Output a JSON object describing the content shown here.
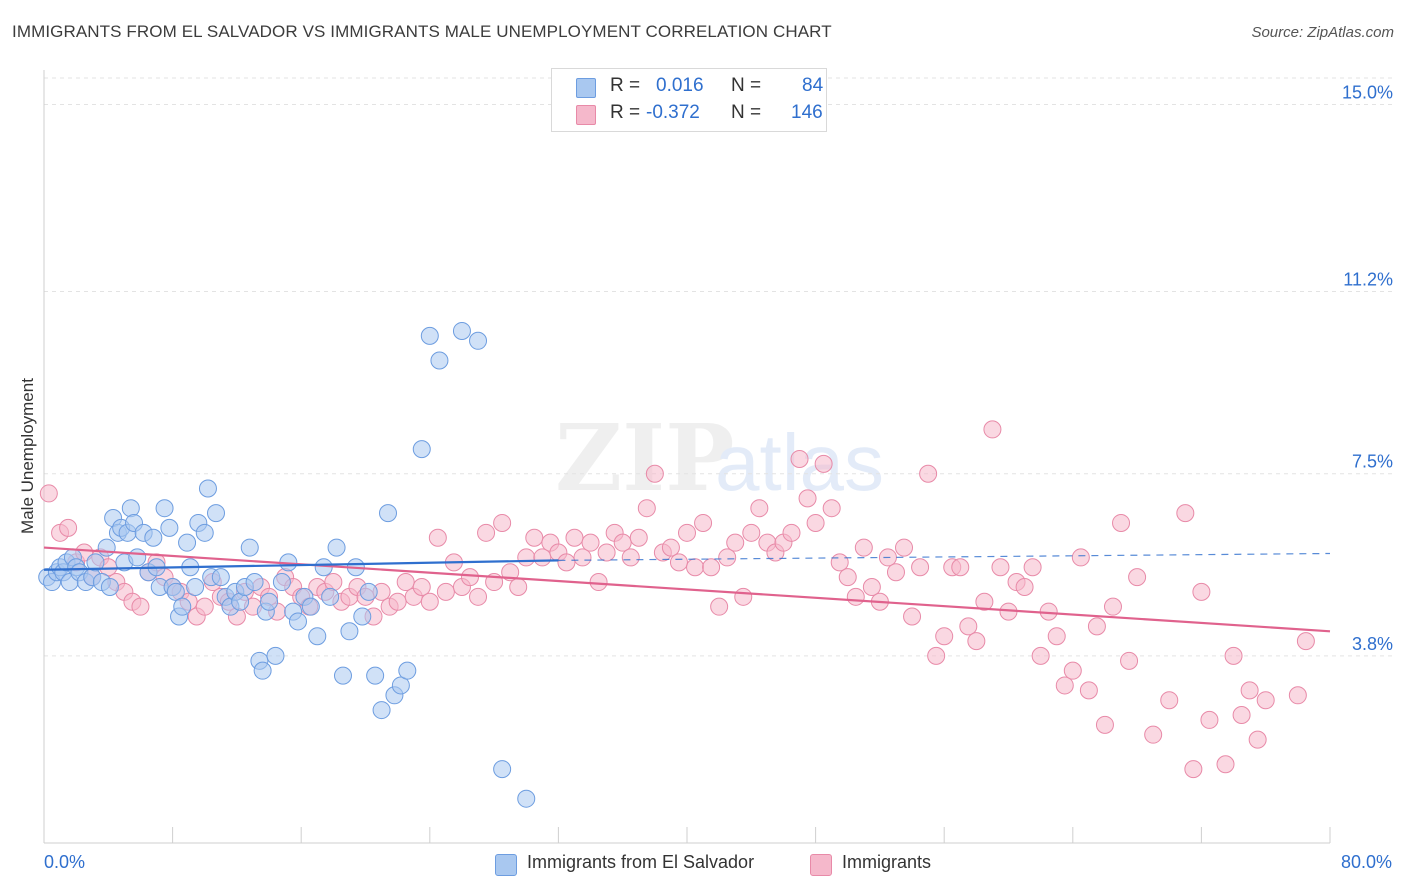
{
  "title": "IMMIGRANTS FROM EL SALVADOR VS IMMIGRANTS MALE UNEMPLOYMENT CORRELATION CHART",
  "source": "Source: ZipAtlas.com",
  "colors": {
    "blue_fill": "#a9c8f0",
    "blue_stroke": "#6d9de0",
    "blue_line": "#2f6fce",
    "pink_fill": "#f5b8cb",
    "pink_stroke": "#e88aa8",
    "pink_line": "#e0628d",
    "value_text": "#2f6fce",
    "grid": "#e3e3e3"
  },
  "legend_top": {
    "rows": [
      {
        "r_label": "R =",
        "r_value": "0.016",
        "n_label": "N =",
        "n_value": "84"
      },
      {
        "r_label": "R =",
        "r_value": "-0.372",
        "n_label": "N =",
        "n_value": "146"
      }
    ]
  },
  "chart_data": {
    "type": "scatter",
    "xlabel": "",
    "ylabel": "Male Unemployment",
    "xlim": [
      0,
      80
    ],
    "ylim": [
      0,
      15.7
    ],
    "x_tick_labels": [
      "0.0%",
      "80.0%"
    ],
    "y_ticks": [
      3.8,
      7.5,
      11.2,
      15.0
    ],
    "y_tick_labels": [
      "3.8%",
      "7.5%",
      "11.2%",
      "15.0%"
    ],
    "grid": "horizontal dashed",
    "legend_position": "bottom",
    "series": [
      {
        "name": "Immigrants from El Salvador",
        "r": 0.016,
        "n": 84,
        "trend": {
          "x0": 0,
          "y0": 5.55,
          "x1": 32,
          "y1": 5.74,
          "dashed_to": 80,
          "dashed_y1": 5.88
        },
        "points": [
          [
            0.2,
            5.4
          ],
          [
            0.5,
            5.3
          ],
          [
            0.8,
            5.5
          ],
          [
            1.0,
            5.6
          ],
          [
            1.2,
            5.5
          ],
          [
            1.4,
            5.7
          ],
          [
            1.6,
            5.3
          ],
          [
            1.8,
            5.8
          ],
          [
            2.0,
            5.6
          ],
          [
            2.2,
            5.5
          ],
          [
            2.6,
            5.3
          ],
          [
            3.0,
            5.4
          ],
          [
            3.2,
            5.7
          ],
          [
            3.6,
            5.3
          ],
          [
            3.9,
            6.0
          ],
          [
            4.1,
            5.2
          ],
          [
            4.3,
            6.6
          ],
          [
            4.6,
            6.3
          ],
          [
            4.8,
            6.4
          ],
          [
            5.0,
            5.7
          ],
          [
            5.2,
            6.3
          ],
          [
            5.4,
            6.8
          ],
          [
            5.6,
            6.5
          ],
          [
            5.8,
            5.8
          ],
          [
            6.2,
            6.3
          ],
          [
            6.5,
            5.5
          ],
          [
            6.8,
            6.2
          ],
          [
            7.0,
            5.6
          ],
          [
            7.2,
            5.2
          ],
          [
            7.5,
            6.8
          ],
          [
            7.8,
            6.4
          ],
          [
            8.0,
            5.2
          ],
          [
            8.2,
            5.1
          ],
          [
            8.4,
            4.6
          ],
          [
            8.6,
            4.8
          ],
          [
            8.9,
            6.1
          ],
          [
            9.1,
            5.6
          ],
          [
            9.4,
            5.2
          ],
          [
            9.6,
            6.5
          ],
          [
            10.0,
            6.3
          ],
          [
            10.2,
            7.2
          ],
          [
            10.4,
            5.4
          ],
          [
            10.7,
            6.7
          ],
          [
            11.0,
            5.4
          ],
          [
            11.3,
            5.0
          ],
          [
            11.6,
            4.8
          ],
          [
            11.9,
            5.1
          ],
          [
            12.2,
            4.9
          ],
          [
            12.5,
            5.2
          ],
          [
            12.8,
            6.0
          ],
          [
            13.1,
            5.3
          ],
          [
            13.4,
            3.7
          ],
          [
            13.6,
            3.5
          ],
          [
            13.8,
            4.7
          ],
          [
            14.0,
            4.9
          ],
          [
            14.4,
            3.8
          ],
          [
            14.8,
            5.3
          ],
          [
            15.2,
            5.7
          ],
          [
            15.5,
            4.7
          ],
          [
            15.8,
            4.5
          ],
          [
            16.2,
            5.0
          ],
          [
            16.6,
            4.8
          ],
          [
            17.0,
            4.2
          ],
          [
            17.4,
            5.6
          ],
          [
            17.8,
            5.0
          ],
          [
            18.2,
            6.0
          ],
          [
            18.6,
            3.4
          ],
          [
            19.0,
            4.3
          ],
          [
            19.4,
            5.6
          ],
          [
            19.8,
            4.6
          ],
          [
            20.2,
            5.1
          ],
          [
            20.6,
            3.4
          ],
          [
            21.0,
            2.7
          ],
          [
            21.4,
            6.7
          ],
          [
            21.8,
            3.0
          ],
          [
            22.2,
            3.2
          ],
          [
            22.6,
            3.5
          ],
          [
            23.5,
            8.0
          ],
          [
            24.0,
            10.3
          ],
          [
            24.6,
            9.8
          ],
          [
            26.0,
            10.4
          ],
          [
            27.0,
            10.2
          ],
          [
            28.5,
            1.5
          ],
          [
            30.0,
            0.9
          ]
        ]
      },
      {
        "name": "Immigrants",
        "r": -0.372,
        "n": 146,
        "trend": {
          "x0": 0,
          "y0": 6.0,
          "x1": 80,
          "y1": 4.3
        },
        "points": [
          [
            0.3,
            7.1
          ],
          [
            1.0,
            6.3
          ],
          [
            1.5,
            6.4
          ],
          [
            2.0,
            5.7
          ],
          [
            2.5,
            5.9
          ],
          [
            3.0,
            5.4
          ],
          [
            3.5,
            5.8
          ],
          [
            4.0,
            5.6
          ],
          [
            4.5,
            5.3
          ],
          [
            5.0,
            5.1
          ],
          [
            5.5,
            4.9
          ],
          [
            6.0,
            4.8
          ],
          [
            6.5,
            5.5
          ],
          [
            7.0,
            5.7
          ],
          [
            7.5,
            5.4
          ],
          [
            8.0,
            5.2
          ],
          [
            8.5,
            5.1
          ],
          [
            9.0,
            4.9
          ],
          [
            9.5,
            4.6
          ],
          [
            10.0,
            4.8
          ],
          [
            10.5,
            5.3
          ],
          [
            11.0,
            5.0
          ],
          [
            11.5,
            4.9
          ],
          [
            12.0,
            4.6
          ],
          [
            12.5,
            5.1
          ],
          [
            13.0,
            4.8
          ],
          [
            13.5,
            5.2
          ],
          [
            14.0,
            5.0
          ],
          [
            14.5,
            4.7
          ],
          [
            15.0,
            5.4
          ],
          [
            15.5,
            5.2
          ],
          [
            16.0,
            5.0
          ],
          [
            16.5,
            4.8
          ],
          [
            17.0,
            5.2
          ],
          [
            17.5,
            5.1
          ],
          [
            18.0,
            5.3
          ],
          [
            18.5,
            4.9
          ],
          [
            19.0,
            5.0
          ],
          [
            19.5,
            5.2
          ],
          [
            20.0,
            5.0
          ],
          [
            20.5,
            4.6
          ],
          [
            21.0,
            5.1
          ],
          [
            21.5,
            4.8
          ],
          [
            22.0,
            4.9
          ],
          [
            22.5,
            5.3
          ],
          [
            23.0,
            5.0
          ],
          [
            23.5,
            5.2
          ],
          [
            24.0,
            4.9
          ],
          [
            24.5,
            6.2
          ],
          [
            25.0,
            5.1
          ],
          [
            25.5,
            5.7
          ],
          [
            26.0,
            5.2
          ],
          [
            26.5,
            5.4
          ],
          [
            27.0,
            5.0
          ],
          [
            27.5,
            6.3
          ],
          [
            28.0,
            5.3
          ],
          [
            28.5,
            6.5
          ],
          [
            29.0,
            5.5
          ],
          [
            29.5,
            5.2
          ],
          [
            30.0,
            5.8
          ],
          [
            30.5,
            6.2
          ],
          [
            31.0,
            5.8
          ],
          [
            31.5,
            6.1
          ],
          [
            32.0,
            5.9
          ],
          [
            32.5,
            5.7
          ],
          [
            33.0,
            6.2
          ],
          [
            33.5,
            5.8
          ],
          [
            34.0,
            6.1
          ],
          [
            34.5,
            5.3
          ],
          [
            35.0,
            5.9
          ],
          [
            35.5,
            6.3
          ],
          [
            36.0,
            6.1
          ],
          [
            36.5,
            5.8
          ],
          [
            37.0,
            6.2
          ],
          [
            37.5,
            6.8
          ],
          [
            38.0,
            7.5
          ],
          [
            38.5,
            5.9
          ],
          [
            39.0,
            6.0
          ],
          [
            39.5,
            5.7
          ],
          [
            40.0,
            6.3
          ],
          [
            40.5,
            5.6
          ],
          [
            41.0,
            6.5
          ],
          [
            41.5,
            5.6
          ],
          [
            42.0,
            4.8
          ],
          [
            42.5,
            5.8
          ],
          [
            43.0,
            6.1
          ],
          [
            43.5,
            5.0
          ],
          [
            44.0,
            6.3
          ],
          [
            44.5,
            6.8
          ],
          [
            45.0,
            6.1
          ],
          [
            45.5,
            5.9
          ],
          [
            46.0,
            6.1
          ],
          [
            46.5,
            6.3
          ],
          [
            47.0,
            7.8
          ],
          [
            47.5,
            7.0
          ],
          [
            48.0,
            6.5
          ],
          [
            48.5,
            7.7
          ],
          [
            49.0,
            6.8
          ],
          [
            49.5,
            5.7
          ],
          [
            50.0,
            5.4
          ],
          [
            50.5,
            5.0
          ],
          [
            51.0,
            6.0
          ],
          [
            51.5,
            5.2
          ],
          [
            52.0,
            4.9
          ],
          [
            52.5,
            5.8
          ],
          [
            53.0,
            5.5
          ],
          [
            53.5,
            6.0
          ],
          [
            54.0,
            4.6
          ],
          [
            54.5,
            5.6
          ],
          [
            55.0,
            7.5
          ],
          [
            55.5,
            3.8
          ],
          [
            56.0,
            4.2
          ],
          [
            56.5,
            5.6
          ],
          [
            57.0,
            5.6
          ],
          [
            57.5,
            4.4
          ],
          [
            58.0,
            4.1
          ],
          [
            58.5,
            4.9
          ],
          [
            59.0,
            8.4
          ],
          [
            59.5,
            5.6
          ],
          [
            60.0,
            4.7
          ],
          [
            60.5,
            5.3
          ],
          [
            61.0,
            5.2
          ],
          [
            61.5,
            5.6
          ],
          [
            62.0,
            3.8
          ],
          [
            62.5,
            4.7
          ],
          [
            63.0,
            4.2
          ],
          [
            63.5,
            3.2
          ],
          [
            64.0,
            3.5
          ],
          [
            64.5,
            5.8
          ],
          [
            65.0,
            3.1
          ],
          [
            65.5,
            4.4
          ],
          [
            66.0,
            2.4
          ],
          [
            66.5,
            4.8
          ],
          [
            67.0,
            6.5
          ],
          [
            67.5,
            3.7
          ],
          [
            68.0,
            5.4
          ],
          [
            69.0,
            2.2
          ],
          [
            70.0,
            2.9
          ],
          [
            71.0,
            6.7
          ],
          [
            71.5,
            1.5
          ],
          [
            72.0,
            5.1
          ],
          [
            72.5,
            2.5
          ],
          [
            73.5,
            1.6
          ],
          [
            74.0,
            3.8
          ],
          [
            74.5,
            2.6
          ],
          [
            75.0,
            3.1
          ],
          [
            75.5,
            2.1
          ],
          [
            76.0,
            2.9
          ],
          [
            78.0,
            3.0
          ],
          [
            78.5,
            4.1
          ]
        ]
      }
    ]
  }
}
